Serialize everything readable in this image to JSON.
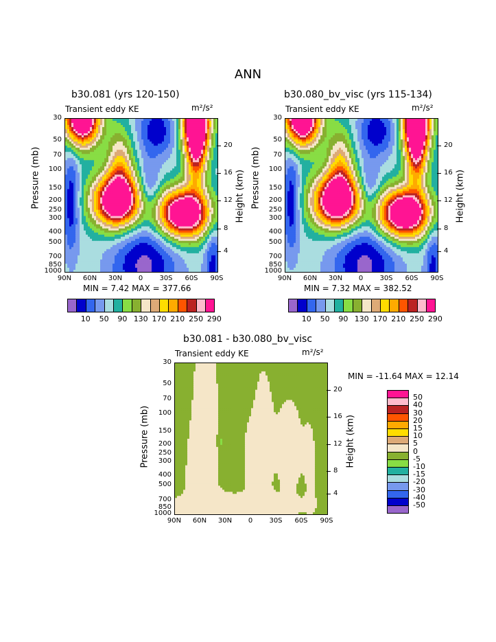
{
  "figure_title": "ANN",
  "panels": [
    {
      "title": "b30.081 (yrs 120-150)",
      "var_label": "Transient eddy KE",
      "units": "m²/s²",
      "stats": "MIN =    7.42   MAX = 377.66"
    },
    {
      "title": "b30.080_bv_visc (yrs 115-134)",
      "var_label": "Transient eddy KE",
      "units": "m²/s²",
      "stats": "MIN =    7.32   MAX = 382.52"
    },
    {
      "title": "b30.081 - b30.080_bv_visc",
      "var_label": "Transient eddy KE",
      "units": "m²/s²",
      "stats": "MIN = -11.64   MAX =  12.14"
    }
  ],
  "axes": {
    "left_label": "Pressure (mb)",
    "right_label": "Height (km)",
    "pressure_ticks": [
      "30",
      "50",
      "70",
      "100",
      "150",
      "200",
      "250",
      "300",
      "400",
      "500",
      "700",
      "850",
      "1000"
    ],
    "height_ticks": [
      "20",
      "16",
      "12",
      "8",
      "4"
    ],
    "lat_ticks": [
      "90N",
      "60N",
      "30N",
      "0",
      "30S",
      "60S",
      "90S"
    ]
  },
  "colorbar_top": {
    "labels": [
      "10",
      "50",
      "90",
      "130",
      "170",
      "210",
      "250",
      "290"
    ],
    "colors": [
      "#9966cc",
      "#0000cc",
      "#3366ee",
      "#7799ee",
      "#aadde0",
      "#22b0a0",
      "#88dd44",
      "#88b030",
      "#f5e6c8",
      "#ddaa77",
      "#ffdd00",
      "#ffaa00",
      "#ff5500",
      "#bb2222",
      "#ffbbcc",
      "#ff1493"
    ]
  },
  "colorbar_diff": {
    "labels": [
      "50",
      "40",
      "30",
      "20",
      "15",
      "10",
      "5",
      "0",
      "-5",
      "-10",
      "-15",
      "-20",
      "-30",
      "-40",
      "-50"
    ],
    "colors": [
      "#ff1493",
      "#ffbbcc",
      "#bb2222",
      "#ff5500",
      "#ffaa00",
      "#ffdd00",
      "#ddaa77",
      "#f5e6c8",
      "#88b030",
      "#88dd44",
      "#22b0a0",
      "#aadde0",
      "#7799ee",
      "#3366ee",
      "#0000cc",
      "#9966cc"
    ]
  },
  "chart_data": [
    {
      "type": "heatmap",
      "title": "b30.081 (yrs 120-150)",
      "xlabel": "",
      "ylabel": "Pressure (mb)",
      "y2label": "Height (km)",
      "x_ticks": [
        "90N",
        "60N",
        "30N",
        "0",
        "30S",
        "60S",
        "90S"
      ],
      "y_range_mb": [
        1000,
        30
      ],
      "min": 7.42,
      "max": 377.66,
      "levels": [
        10,
        30,
        50,
        70,
        90,
        110,
        130,
        150,
        170,
        190,
        210,
        230,
        250,
        270,
        290
      ]
    },
    {
      "type": "heatmap",
      "title": "b30.080_bv_visc (yrs 115-134)",
      "xlabel": "",
      "ylabel": "Pressure (mb)",
      "y2label": "Height (km)",
      "x_ticks": [
        "90N",
        "60N",
        "30N",
        "0",
        "30S",
        "60S",
        "90S"
      ],
      "y_range_mb": [
        1000,
        30
      ],
      "min": 7.32,
      "max": 382.52,
      "levels": [
        10,
        30,
        50,
        70,
        90,
        110,
        130,
        150,
        170,
        190,
        210,
        230,
        250,
        270,
        290
      ]
    },
    {
      "type": "heatmap",
      "title": "b30.081 - b30.080_bv_visc",
      "xlabel": "",
      "ylabel": "Pressure (mb)",
      "y2label": "Height (km)",
      "x_ticks": [
        "90N",
        "60N",
        "30N",
        "0",
        "30S",
        "60S",
        "90S"
      ],
      "y_range_mb": [
        1000,
        30
      ],
      "min": -11.64,
      "max": 12.14,
      "levels": [
        -50,
        -40,
        -30,
        -20,
        -15,
        -10,
        -5,
        0,
        5,
        10,
        15,
        20,
        30,
        40,
        50
      ]
    }
  ]
}
